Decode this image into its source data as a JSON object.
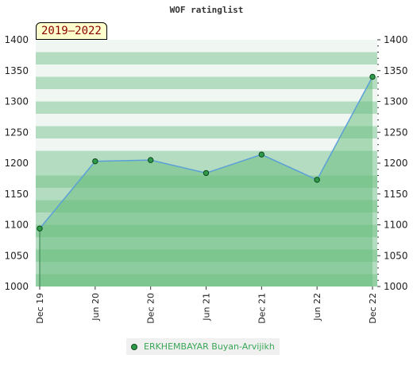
{
  "title": "WOF ratinglist",
  "period": "2019–2022",
  "chart_data": {
    "type": "area",
    "title": "WOF ratinglist",
    "x_ticks": [
      "Dec 19",
      "Jun 20",
      "Dec 20",
      "Jun 21",
      "Dec 21",
      "Jun 22",
      "Dec 22"
    ],
    "ylim": [
      1000,
      1400
    ],
    "y_ticks": [
      1000,
      1050,
      1100,
      1150,
      1200,
      1250,
      1300,
      1350,
      1400
    ],
    "y_ticks_right": true,
    "grid": "horizontal bands",
    "legend_position": "bottom-center",
    "series": [
      {
        "name": "ERKHEMBAYAR Buyan-Arvijikh",
        "x": [
          "Dec 19",
          "Jun 20",
          "Dec 20",
          "Jun 21",
          "Dec 21",
          "Jun 22",
          "Dec 22"
        ],
        "values": [
          1094,
          1203,
          1205,
          1184,
          1214,
          1173,
          1340
        ]
      }
    ]
  },
  "colors": {
    "band_light": "#f0f7f2",
    "band_mid": "#b4dcc0",
    "band_dark": "#93cfa3",
    "area_fill": "#6dbf82",
    "line": "#5b9fd8",
    "marker": "#2f9a4a",
    "marker_edge": "#0b4a1a"
  },
  "legend": {
    "label": "ERKHEMBAYAR Buyan-Arvijikh"
  }
}
